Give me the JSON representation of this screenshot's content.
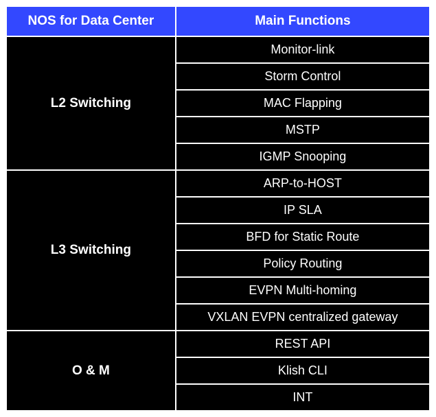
{
  "table": {
    "header": {
      "col1": "NOS for Data Center",
      "col2": "Main Functions"
    },
    "colors": {
      "header_bg": "#3348ff",
      "header_fg": "#ffffff",
      "cell_bg": "#000000",
      "cell_fg": "#ffffff",
      "border": "#ffffff"
    },
    "font": {
      "header_size": 19,
      "cell_size": 18,
      "category_weight": 700
    },
    "col_widths": [
      "40%",
      "60%"
    ],
    "sections": [
      {
        "category": "L2 Switching",
        "functions": [
          "Monitor-link",
          "Storm Control",
          "MAC Flapping",
          "MSTP",
          "IGMP Snooping"
        ]
      },
      {
        "category": "L3 Switching",
        "functions": [
          "ARP-to-HOST",
          "IP SLA",
          "BFD for Static Route",
          "Policy Routing",
          "EVPN Multi-homing",
          "VXLAN EVPN centralized gateway"
        ]
      },
      {
        "category": "O & M",
        "functions": [
          "REST API",
          "Klish CLI",
          "INT"
        ]
      }
    ]
  }
}
